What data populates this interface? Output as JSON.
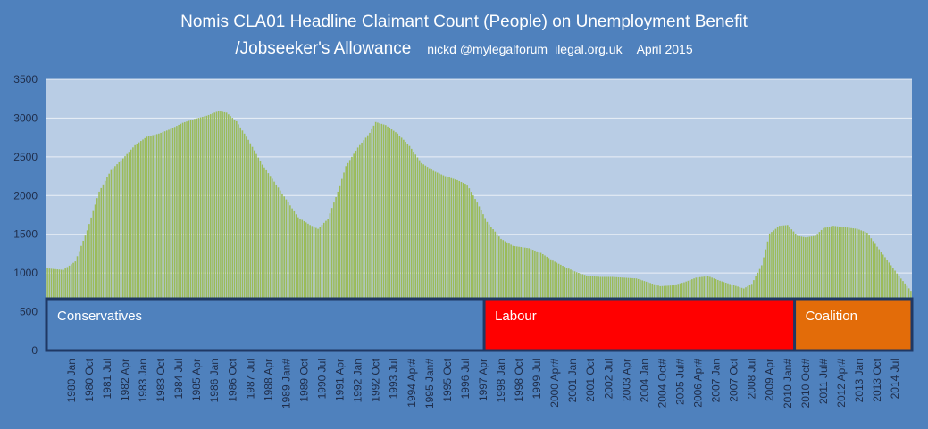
{
  "title": {
    "line1": "Nomis CLA01 Headline Claimant Count (People) on Unemployment Benefit",
    "line2": "/Jobseeker's Allowance",
    "credit": "nickd @mylegalforum",
    "site": "ilegal.org.uk",
    "date": "April 2015"
  },
  "colors": {
    "background": "#4f81bd",
    "plot_area": "#b9cde5",
    "bars": "#9bbb59",
    "conservatives": "#4f81bd",
    "labour": "#ff0000",
    "coalition": "#e36c09",
    "era_border": "#1f3864"
  },
  "chart_data": {
    "type": "bar",
    "ylim": [
      0,
      3500
    ],
    "yticks": [
      0,
      500,
      1000,
      1500,
      2000,
      2500,
      3000,
      3500
    ],
    "x_start": "1979 Jan",
    "x_end": "2015 Mar",
    "grid": true,
    "xtick_labels": [
      "1980 Jan",
      "1980 Oct",
      "1981 Jul",
      "1982 Apr",
      "1983 Jan",
      "1983 Oct",
      "1984 Jul",
      "1985 Apr",
      "1986 Jan",
      "1986 Oct",
      "1987 Jul",
      "1988 Apr",
      "1989 Jan#",
      "1989 Oct",
      "1990 Jul",
      "1991 Apr",
      "1992 Jan",
      "1992 Oct",
      "1993 Jul",
      "1994 Apr#",
      "1995 Jan#",
      "1995 Oct",
      "1996 Jul",
      "1997 Apr",
      "1998 Jan",
      "1998 Oct",
      "1999 Jul",
      "2000 Apr#",
      "2001 Jan",
      "2001 Oct",
      "2002 Jul",
      "2003 Apr",
      "2004 Jan",
      "2004 Oct#",
      "2005 Jul#",
      "2006 Apr#",
      "2007 Jan",
      "2007 Oct",
      "2008 Jul",
      "2009 Apr",
      "2010 Jan#",
      "2010 Oct#",
      "2011 Jul#",
      "2012 Apr#",
      "2013 Jan",
      "2013 Oct",
      "2014 Jul"
    ],
    "series_keypoints": [
      [
        "1979-01",
        1060
      ],
      [
        "1979-09",
        1040
      ],
      [
        "1980-03",
        1150
      ],
      [
        "1980-09",
        1550
      ],
      [
        "1981-03",
        2050
      ],
      [
        "1981-09",
        2330
      ],
      [
        "1982-03",
        2480
      ],
      [
        "1982-09",
        2650
      ],
      [
        "1983-03",
        2760
      ],
      [
        "1983-09",
        2800
      ],
      [
        "1984-03",
        2860
      ],
      [
        "1984-09",
        2940
      ],
      [
        "1985-03",
        2990
      ],
      [
        "1985-09",
        3030
      ],
      [
        "1986-03",
        3090
      ],
      [
        "1986-07",
        3070
      ],
      [
        "1986-12",
        2960
      ],
      [
        "1987-06",
        2720
      ],
      [
        "1988-01",
        2400
      ],
      [
        "1988-07",
        2180
      ],
      [
        "1989-01",
        1950
      ],
      [
        "1989-07",
        1720
      ],
      [
        "1990-01",
        1620
      ],
      [
        "1990-05",
        1570
      ],
      [
        "1990-10",
        1700
      ],
      [
        "1991-03",
        2050
      ],
      [
        "1991-07",
        2380
      ],
      [
        "1992-01",
        2620
      ],
      [
        "1992-07",
        2810
      ],
      [
        "1992-10",
        2950
      ],
      [
        "1993-03",
        2910
      ],
      [
        "1993-09",
        2800
      ],
      [
        "1994-03",
        2640
      ],
      [
        "1994-09",
        2420
      ],
      [
        "1995-03",
        2320
      ],
      [
        "1995-09",
        2250
      ],
      [
        "1996-03",
        2200
      ],
      [
        "1996-08",
        2140
      ],
      [
        "1997-01",
        1910
      ],
      [
        "1997-06",
        1660
      ],
      [
        "1998-01",
        1440
      ],
      [
        "1998-07",
        1350
      ],
      [
        "1999-03",
        1320
      ],
      [
        "1999-09",
        1260
      ],
      [
        "2000-03",
        1160
      ],
      [
        "2000-09",
        1080
      ],
      [
        "2001-03",
        1010
      ],
      [
        "2001-09",
        960
      ],
      [
        "2002-03",
        950
      ],
      [
        "2002-09",
        950
      ],
      [
        "2003-03",
        940
      ],
      [
        "2003-09",
        930
      ],
      [
        "2004-03",
        880
      ],
      [
        "2004-09",
        830
      ],
      [
        "2005-03",
        840
      ],
      [
        "2005-09",
        880
      ],
      [
        "2006-03",
        940
      ],
      [
        "2006-09",
        960
      ],
      [
        "2007-03",
        900
      ],
      [
        "2007-09",
        850
      ],
      [
        "2008-03",
        800
      ],
      [
        "2008-07",
        860
      ],
      [
        "2008-12",
        1100
      ],
      [
        "2009-04",
        1510
      ],
      [
        "2009-09",
        1610
      ],
      [
        "2010-01",
        1620
      ],
      [
        "2010-06",
        1480
      ],
      [
        "2010-10",
        1460
      ],
      [
        "2011-03",
        1480
      ],
      [
        "2011-07",
        1580
      ],
      [
        "2011-12",
        1610
      ],
      [
        "2012-06",
        1590
      ],
      [
        "2012-12",
        1570
      ],
      [
        "2013-05",
        1520
      ],
      [
        "2013-10",
        1340
      ],
      [
        "2014-03",
        1170
      ],
      [
        "2014-09",
        960
      ],
      [
        "2015-03",
        770
      ]
    ],
    "eras": [
      {
        "label": "Conservatives",
        "start": "1979-01",
        "end": "1997-05",
        "color_key": "conservatives"
      },
      {
        "label": "Labour",
        "start": "1997-05",
        "end": "2010-05",
        "color_key": "labour"
      },
      {
        "label": "Coalition",
        "start": "2010-05",
        "end": "2015-03",
        "color_key": "coalition"
      }
    ]
  }
}
